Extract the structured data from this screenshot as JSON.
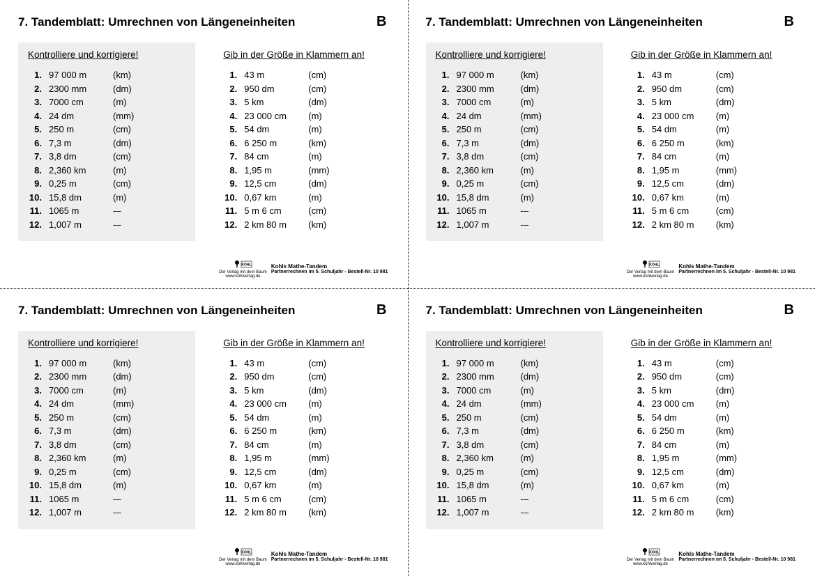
{
  "title": "7. Tandemblatt: Umrechnen von Längeneinheiten",
  "letter": "B",
  "leftHeading": "Kontrolliere und korrigiere!",
  "rightHeading": "Gib in der Größe in Klammern an!",
  "leftRows": [
    {
      "n": "1.",
      "v": "97 000 m",
      "u": "(km)"
    },
    {
      "n": "2.",
      "v": "2300 mm",
      "u": "(dm)"
    },
    {
      "n": "3.",
      "v": "7000 cm",
      "u": "(m)"
    },
    {
      "n": "4.",
      "v": "24 dm",
      "u": "(mm)"
    },
    {
      "n": "5.",
      "v": "250 m",
      "u": "(cm)"
    },
    {
      "n": "6.",
      "v": "7,3 m",
      "u": "(dm)"
    },
    {
      "n": "7.",
      "v": "3,8 dm",
      "u": "(cm)"
    },
    {
      "n": "8.",
      "v": "2,360 km",
      "u": "(m)"
    },
    {
      "n": "9.",
      "v": "0,25 m",
      "u": "(cm)"
    },
    {
      "n": "10.",
      "v": "15,8 dm",
      "u": "(m)"
    },
    {
      "n": "11.",
      "v": "1065 m",
      "u": "-–"
    },
    {
      "n": "12.",
      "v": "1,007 m",
      "u": "-–"
    }
  ],
  "rightRows": [
    {
      "n": "1.",
      "v": "43 m",
      "u": "(cm)"
    },
    {
      "n": "2.",
      "v": "950 dm",
      "u": "(cm)"
    },
    {
      "n": "3.",
      "v": "5 km",
      "u": "(dm)"
    },
    {
      "n": "4.",
      "v": "23 000 cm",
      "u": "(m)"
    },
    {
      "n": "5.",
      "v": "54 dm",
      "u": "(m)"
    },
    {
      "n": "6.",
      "v": "6 250 m",
      "u": "(km)"
    },
    {
      "n": "7.",
      "v": "84 cm",
      "u": "(m)"
    },
    {
      "n": "8.",
      "v": "1,95 m",
      "u": "(mm)"
    },
    {
      "n": "9.",
      "v": "12,5 cm",
      "u": "(dm)"
    },
    {
      "n": "10.",
      "v": "0,67 km",
      "u": "(m)"
    },
    {
      "n": "11.",
      "v": "5 m 6 cm",
      "u": "(cm)"
    },
    {
      "n": "12.",
      "v": "2 km 80 m",
      "u": "(km)"
    }
  ],
  "footer": {
    "brand": "KOHL",
    "tagline": "Der Verlag mit dem Baum",
    "url": "www.kohlverlag.de",
    "line1": "Kohls Mathe-Tandem",
    "line2": "Partnerrechnen im 5. Schuljahr  -  Bestell-Nr. 10 981"
  },
  "style": {
    "bg": "#ffffff",
    "shaded": "#eeeeee",
    "text": "#000000",
    "titleFontSize": 17,
    "rowFontSize": 13,
    "subheadFontSize": 13.5,
    "footerFontSize": 8
  }
}
